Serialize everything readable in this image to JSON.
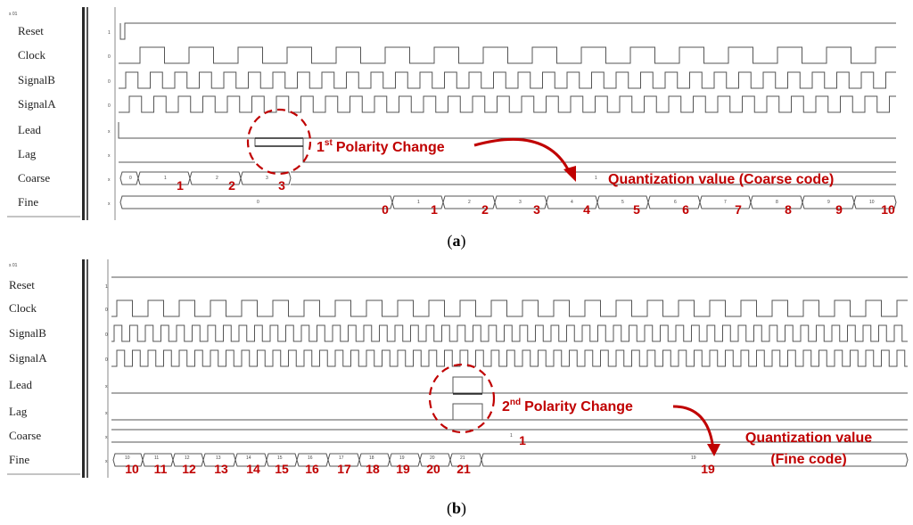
{
  "panels": [
    {
      "caption": "(a)",
      "caption_letter": "a",
      "header": "s 01",
      "labels": [
        "Reset",
        "Clock",
        "SignalB",
        "SignalA",
        "Lead",
        "Lag",
        "Coarse",
        "Fine"
      ],
      "values": [
        "1",
        "0",
        "0",
        "0",
        "x",
        "x",
        "x",
        "x"
      ],
      "coarse_codes": [
        "0",
        "1",
        "2",
        "3",
        "1"
      ],
      "coarse_numbers": [
        "1",
        "2",
        "3"
      ],
      "fine_codes": [
        "0",
        "1",
        "2",
        "3",
        "4",
        "5",
        "6",
        "7",
        "8",
        "9",
        "10"
      ],
      "fine_numbers": [
        "0",
        "1",
        "2",
        "3",
        "4",
        "5",
        "6",
        "7",
        "8",
        "9",
        "10"
      ],
      "annotation_sup": "st",
      "annotation_base": "1",
      "annotation_text": "Polarity Change",
      "target_text": "Quantization value (Coarse code)"
    },
    {
      "caption": "(b)",
      "caption_letter": "b",
      "header": "s 01",
      "labels": [
        "Reset",
        "Clock",
        "SignalB",
        "SignalA",
        "Lead",
        "Lag",
        "Coarse",
        "Fine"
      ],
      "values": [
        "1",
        "0",
        "0",
        "0",
        "x",
        "x",
        "x",
        "x"
      ],
      "coarse_codes": [
        "1"
      ],
      "coarse_numbers": [
        "1"
      ],
      "fine_codes": [
        "10",
        "11",
        "12",
        "13",
        "14",
        "15",
        "16",
        "17",
        "18",
        "19",
        "20",
        "21",
        "19"
      ],
      "fine_numbers": [
        "10",
        "11",
        "12",
        "13",
        "14",
        "15",
        "16",
        "17",
        "18",
        "19",
        "20",
        "21",
        "19"
      ],
      "annotation_sup": "nd",
      "annotation_base": "2",
      "annotation_text": "Polarity Change",
      "target_text_line1": "Quantization value",
      "target_text_line2": "(Fine code)"
    }
  ],
  "colors": {
    "accent": "#c00000",
    "trace": "#555555",
    "divider": "#333333"
  }
}
